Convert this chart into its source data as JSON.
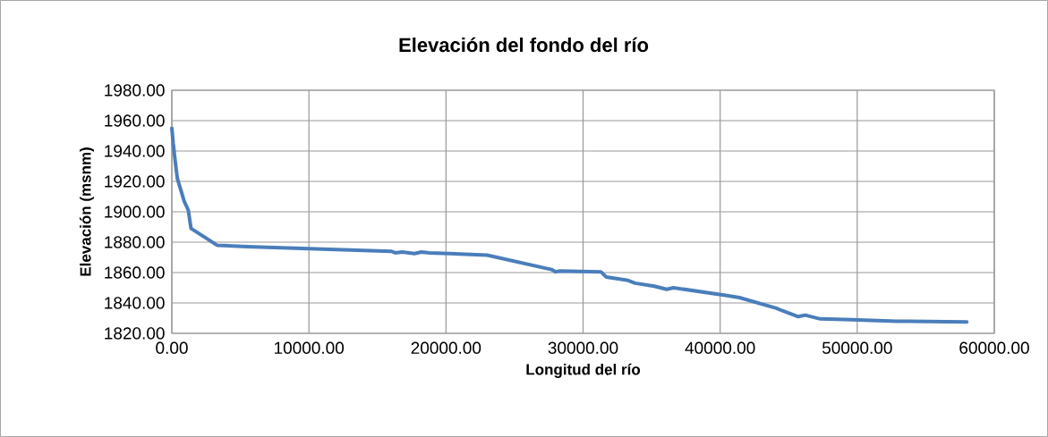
{
  "chart_data": {
    "type": "line",
    "title": "Elevación del fondo del río",
    "xlabel": "Longitud del río",
    "ylabel": "Elevación (msnm)",
    "x": [
      0,
      100,
      250,
      400,
      700,
      900,
      1200,
      1400,
      3300,
      5500,
      16000,
      16300,
      16800,
      17700,
      18200,
      18800,
      23000,
      27700,
      28000,
      28300,
      31300,
      31700,
      33200,
      33800,
      35200,
      36100,
      36600,
      40400,
      41400,
      44100,
      44500,
      45700,
      46200,
      47300,
      49600,
      52900,
      58000
    ],
    "series": [
      {
        "color": "#4a7ebb",
        "values": [
          1955,
          1945,
          1933,
          1922,
          1913,
          1907,
          1901,
          1889,
          1878,
          1877,
          1874,
          1873,
          1873.5,
          1872.5,
          1873.5,
          1873,
          1871.5,
          1862,
          1860.5,
          1861,
          1860.5,
          1857,
          1855,
          1853,
          1851,
          1849,
          1850,
          1845,
          1843.5,
          1836.5,
          1835,
          1831,
          1832,
          1829.5,
          1829,
          1828,
          1827.5
        ]
      }
    ],
    "xlim": [
      0,
      60000
    ],
    "ylim": [
      1820,
      1980
    ],
    "xticks": [
      {
        "value": 0,
        "label": "0.00"
      },
      {
        "value": 10000,
        "label": "10000.00"
      },
      {
        "value": 20000,
        "label": "20000.00"
      },
      {
        "value": 30000,
        "label": "30000.00"
      },
      {
        "value": 40000,
        "label": "40000.00"
      },
      {
        "value": 50000,
        "label": "50000.00"
      },
      {
        "value": 60000,
        "label": "60000.00"
      }
    ],
    "yticks": [
      {
        "value": 1820,
        "label": "1820.00"
      },
      {
        "value": 1840,
        "label": "1840.00"
      },
      {
        "value": 1860,
        "label": "1860.00"
      },
      {
        "value": 1880,
        "label": "1880.00"
      },
      {
        "value": 1900,
        "label": "1900.00"
      },
      {
        "value": 1920,
        "label": "1920.00"
      },
      {
        "value": 1940,
        "label": "1940.00"
      },
      {
        "value": 1960,
        "label": "1960.00"
      },
      {
        "value": 1980,
        "label": "1980.00"
      }
    ],
    "grid": true,
    "marker": "none",
    "line_style": "solid"
  }
}
